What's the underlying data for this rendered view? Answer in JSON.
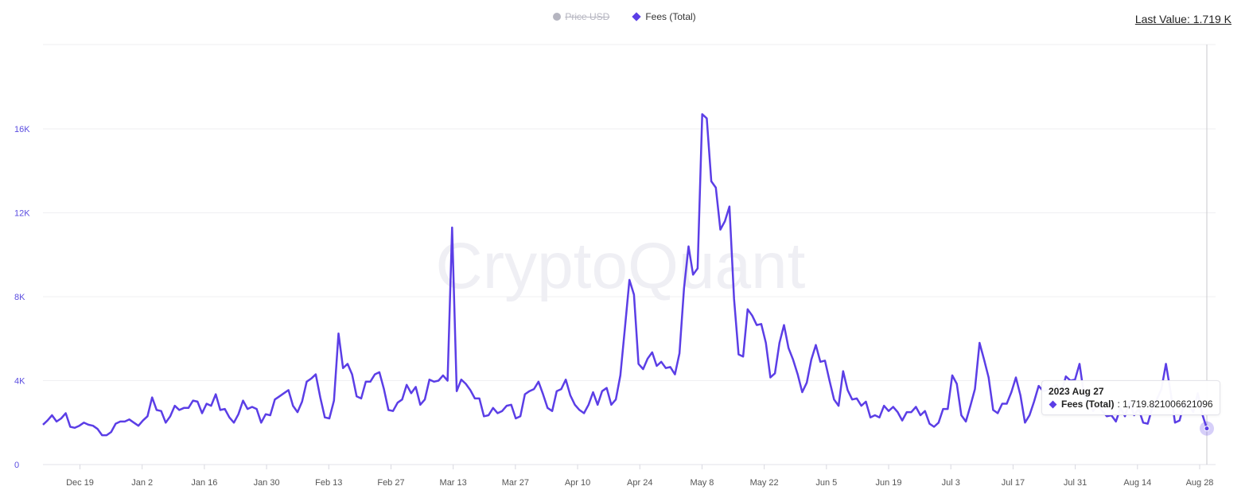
{
  "legend": {
    "items": [
      {
        "label": "Price USD",
        "hidden": true,
        "marker": "circle-icon"
      },
      {
        "label": "Fees (Total)",
        "hidden": false,
        "marker": "diamond-icon",
        "color": "#5b3ee6"
      }
    ]
  },
  "last_value": "Last Value: 1.719 K",
  "watermark": "CryptoQuant",
  "tooltip": {
    "date": "2023 Aug 27",
    "series": "Fees (Total)",
    "value": ": 1,719.821006621096"
  },
  "colors": {
    "line": "#5b3ee6",
    "grid": "#efeff2",
    "ytick": "#5b4de0",
    "crosshair": "#c8c8cc"
  },
  "chart_data": {
    "type": "line",
    "title": "",
    "xlabel": "",
    "ylabel": "",
    "legend": [
      "Price USD (hidden)",
      "Fees (Total)"
    ],
    "legend_position": "top-center",
    "grid": true,
    "ylim": [
      0,
      18000
    ],
    "yticks": [
      "0",
      "4K",
      "8K",
      "12K",
      "16K"
    ],
    "ytick_values": [
      0,
      4000,
      8000,
      12000,
      16000
    ],
    "xticks": [
      "Dec 19",
      "Jan 2",
      "Jan 16",
      "Jan 30",
      "Feb 13",
      "Feb 27",
      "Mar 13",
      "Mar 27",
      "Apr 10",
      "Apr 24",
      "May 8",
      "May 22",
      "Jun 5",
      "Jun 19",
      "Jul 3",
      "Jul 17",
      "Jul 31",
      "Aug 14",
      "Aug 28"
    ],
    "series": [
      {
        "name": "Fees (Total)",
        "color": "#5b3ee6",
        "x_start": "2022 Dec 11",
        "x_end": "2023 Aug 27",
        "values": [
          1900,
          2100,
          2350,
          2050,
          2200,
          2450,
          1800,
          1750,
          1850,
          2000,
          1900,
          1850,
          1700,
          1400,
          1400,
          1550,
          1950,
          2050,
          2050,
          2150,
          2000,
          1850,
          2100,
          2300,
          3200,
          2600,
          2550,
          2000,
          2300,
          2800,
          2600,
          2700,
          2700,
          3050,
          3000,
          2450,
          2900,
          2800,
          3350,
          2600,
          2650,
          2250,
          2000,
          2400,
          3050,
          2650,
          2750,
          2650,
          2000,
          2400,
          2350,
          3100,
          3250,
          3400,
          3550,
          2800,
          2500,
          3000,
          3950,
          4100,
          4300,
          3200,
          2250,
          2200,
          3050,
          6250,
          4600,
          4800,
          4300,
          3250,
          3150,
          3950,
          3950,
          4300,
          4400,
          3600,
          2600,
          2550,
          2950,
          3100,
          3800,
          3400,
          3700,
          2850,
          3100,
          4050,
          3950,
          4000,
          4250,
          4000,
          11300,
          3500,
          4050,
          3850,
          3550,
          3150,
          3150,
          2300,
          2350,
          2700,
          2450,
          2550,
          2800,
          2850,
          2200,
          2300,
          3350,
          3500,
          3600,
          3950,
          3350,
          2700,
          2550,
          3500,
          3600,
          4050,
          3300,
          2850,
          2600,
          2450,
          2850,
          3450,
          2850,
          3500,
          3650,
          2850,
          3100,
          4250,
          6500,
          8800,
          8100,
          4800,
          4550,
          5050,
          5350,
          4700,
          4900,
          4600,
          4650,
          4300,
          5300,
          8400,
          10400,
          9050,
          9350,
          16700,
          16500,
          13500,
          13200,
          11200,
          11600,
          12300,
          7900,
          5250,
          5150,
          7400,
          7100,
          6650,
          6700,
          5800,
          4150,
          4350,
          5800,
          6650,
          5550,
          5000,
          4300,
          3450,
          3900,
          5000,
          5700,
          4900,
          4950,
          4000,
          3100,
          2800,
          4450,
          3550,
          3100,
          3150,
          2800,
          3000,
          2250,
          2350,
          2250,
          2800,
          2550,
          2750,
          2500,
          2100,
          2500,
          2500,
          2750,
          2350,
          2550,
          1950,
          1800,
          2000,
          2650,
          2650,
          4250,
          3850,
          2350,
          2050,
          2800,
          3600,
          5800,
          5000,
          4150,
          2600,
          2450,
          2900,
          2900,
          3450,
          4150,
          3300,
          2000,
          2350,
          3000,
          3750,
          3500,
          3550,
          3700,
          3800,
          3400,
          4200,
          4000,
          4050,
          4800,
          3300,
          3000,
          2550,
          2850,
          2550,
          2300,
          2350,
          2050,
          2700,
          2300,
          3000,
          2350,
          2650,
          2000,
          1950,
          2700,
          3100,
          3600,
          4800,
          3500,
          2000,
          2100,
          2900,
          2900,
          2500,
          3400,
          2400,
          1719.82
        ]
      }
    ]
  }
}
